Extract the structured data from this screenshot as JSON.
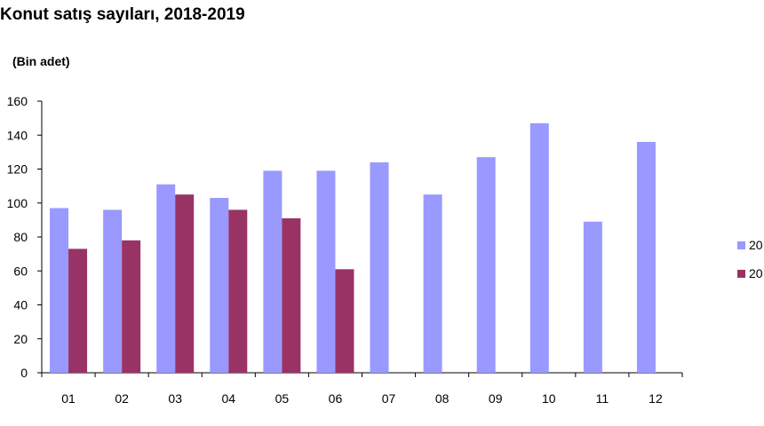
{
  "chart_data": {
    "type": "bar",
    "title": "Konut satış sayıları, 2018-2019",
    "unit_label": "(Bin adet)",
    "categories": [
      "01",
      "02",
      "03",
      "04",
      "05",
      "06",
      "07",
      "08",
      "09",
      "10",
      "11",
      "12"
    ],
    "series": [
      {
        "name": "20",
        "color": "#9999ff",
        "values": [
          97,
          96,
          111,
          103,
          119,
          119,
          124,
          105,
          127,
          147,
          89,
          136
        ]
      },
      {
        "name": "20",
        "color": "#993366",
        "values": [
          73,
          78,
          105,
          96,
          91,
          61,
          null,
          null,
          null,
          null,
          null,
          null
        ]
      }
    ],
    "ylim": [
      0,
      160
    ],
    "yticks": [
      0,
      20,
      40,
      60,
      80,
      100,
      120,
      140,
      160
    ],
    "xlabel": "",
    "ylabel": "",
    "grid": false,
    "legend": "right"
  }
}
